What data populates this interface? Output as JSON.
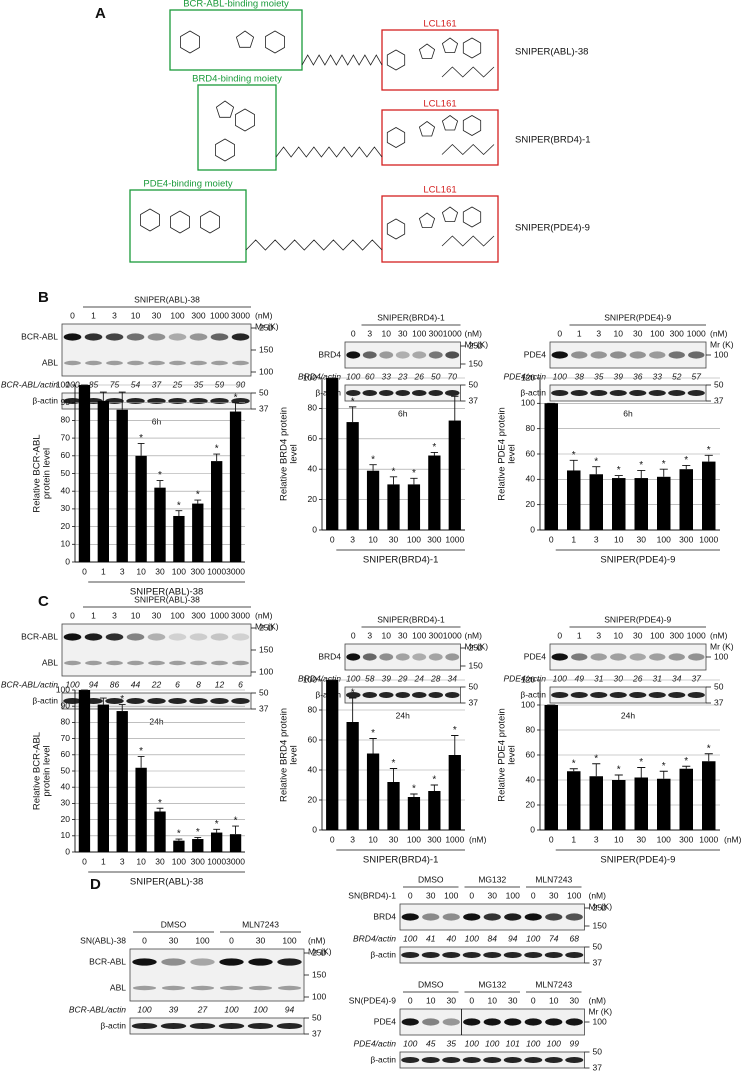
{
  "panels": [
    "A",
    "B",
    "C",
    "D"
  ],
  "structures": [
    {
      "moiety": "BCR-ABL-binding moiety",
      "ligand": "LCL161",
      "name": "SNIPER(ABL)-38"
    },
    {
      "moiety": "BRD4-binding moiety",
      "ligand": "LCL161",
      "name": "SNIPER(BRD4)-1"
    },
    {
      "moiety": "PDE4-binding moiety",
      "ligand": "LCL161",
      "name": "SNIPER(PDE4)-9"
    }
  ],
  "blots": [
    {
      "title": "SNIPER(ABL)-38",
      "conc": [
        0,
        1,
        3,
        10,
        30,
        100,
        300,
        1000,
        3000
      ],
      "unit": "(nM)",
      "mr": "Mr (K)",
      "rows": [
        "BCR-ABL",
        "ABL"
      ],
      "markers": [
        250,
        150,
        100
      ],
      "ratio_label": "BCR-ABL/actin",
      "ratios": [
        100,
        85,
        75,
        54,
        37,
        25,
        35,
        59,
        90
      ],
      "control": "β-actin",
      "control_markers": [
        50,
        37
      ],
      "time": "6h"
    },
    {
      "title": "SNIPER(BRD4)-1",
      "conc": [
        0,
        3,
        10,
        30,
        100,
        300,
        1000
      ],
      "unit": "(nM)",
      "mr": "Mr (K)",
      "rows": [
        "BRD4"
      ],
      "markers": [
        250,
        150
      ],
      "ratio_label": "BRD4/actin",
      "ratios": [
        100,
        60,
        33,
        23,
        26,
        50,
        70
      ],
      "control": "β-actin",
      "control_markers": [
        50,
        37
      ],
      "time": "6h"
    },
    {
      "title": "SNIPER(PDE4)-9",
      "conc": [
        0,
        1,
        3,
        10,
        30,
        100,
        300,
        1000
      ],
      "unit": "(nM)",
      "mr": "Mr (K)",
      "rows": [
        "PDE4"
      ],
      "markers": [
        100
      ],
      "ratio_label": "PDE4/actin",
      "ratios": [
        100,
        38,
        35,
        39,
        36,
        33,
        52,
        57
      ],
      "control": "β-actin",
      "control_markers": [
        50,
        37
      ],
      "time": "6h"
    },
    {
      "title": "SNIPER(ABL)-38",
      "conc": [
        0,
        1,
        3,
        10,
        30,
        100,
        300,
        1000,
        3000
      ],
      "unit": "(nM)",
      "mr": "Mr (K)",
      "rows": [
        "BCR-ABL",
        "ABL"
      ],
      "markers": [
        250,
        150,
        100
      ],
      "ratio_label": "BCR-ABL/actin",
      "ratios": [
        100,
        94,
        86,
        44,
        22,
        6,
        8,
        12,
        6
      ],
      "control": "β-actin",
      "control_markers": [
        50,
        37
      ],
      "time": "24h"
    },
    {
      "title": "SNIPER(BRD4)-1",
      "conc": [
        0,
        3,
        10,
        30,
        100,
        300,
        1000
      ],
      "unit": "(nM)",
      "mr": "Mr (K)",
      "rows": [
        "BRD4"
      ],
      "markers": [
        250,
        150
      ],
      "ratio_label": "BRD4/actin",
      "ratios": [
        100,
        58,
        39,
        29,
        24,
        28,
        34
      ],
      "control": "β-actin",
      "control_markers": [
        50,
        37
      ],
      "time": "24h"
    },
    {
      "title": "SNIPER(PDE4)-9",
      "conc": [
        0,
        1,
        3,
        10,
        30,
        100,
        300,
        1000
      ],
      "unit": "(nM)",
      "mr": "Mr (K)",
      "rows": [
        "PDE4"
      ],
      "markers": [
        100
      ],
      "ratio_label": "PDE4/actin",
      "ratios": [
        100,
        49,
        31,
        30,
        26,
        31,
        34,
        37
      ],
      "control": "β-actin",
      "control_markers": [
        50,
        37
      ],
      "time": "24h"
    },
    {
      "compound": "SN(ABL)-38",
      "groups": [
        "DMSO",
        "MLN7243"
      ],
      "conc": [
        0,
        30,
        100,
        0,
        30,
        100
      ],
      "unit": "(nM)",
      "mr": "Mr (K)",
      "rows": [
        "BCR-ABL",
        "ABL"
      ],
      "markers": [
        250,
        150,
        100
      ],
      "ratio_label": "BCR-ABL/actin",
      "ratios": [
        100,
        39,
        27,
        100,
        100,
        94
      ],
      "control": "β-actin",
      "control_markers": [
        50,
        37
      ]
    },
    {
      "compound": "SN(BRD4)-1",
      "groups": [
        "DMSO",
        "MG132",
        "MLN7243"
      ],
      "conc": [
        0,
        30,
        100,
        0,
        30,
        100,
        0,
        30,
        100
      ],
      "unit": "(nM)",
      "mr": "Mr (K)",
      "rows": [
        "BRD4"
      ],
      "markers": [
        250,
        150
      ],
      "ratio_label": "BRD4/actin",
      "ratios": [
        100,
        41,
        40,
        100,
        84,
        94,
        100,
        74,
        68
      ],
      "control": "β-actin",
      "control_markers": [
        50,
        37
      ]
    },
    {
      "compound": "SN(PDE4)-9",
      "groups": [
        "DMSO",
        "MG132",
        "MLN7243"
      ],
      "conc": [
        0,
        10,
        30,
        0,
        10,
        30,
        0,
        10,
        30
      ],
      "unit": "(nM)",
      "mr": "Mr (K)",
      "rows": [
        "PDE4"
      ],
      "markers": [
        100
      ],
      "ratio_label": "PDE4/actin",
      "ratios": [
        100,
        45,
        35,
        100,
        100,
        101,
        100,
        100,
        99
      ],
      "control": "β-actin",
      "control_markers": [
        50,
        37
      ]
    }
  ],
  "chart_data": [
    {
      "type": "bar",
      "ylabel": [
        "Relative BCR-ABL",
        "protein level"
      ],
      "xlabel": "SNIPER(ABL)-38",
      "categories": [
        0,
        1,
        3,
        10,
        30,
        100,
        300,
        1000,
        3000
      ],
      "values": [
        100,
        91,
        86,
        60,
        42,
        26,
        33,
        57,
        85
      ],
      "errors": [
        0,
        5,
        10,
        7,
        4,
        3,
        2,
        4,
        5
      ],
      "significant": [
        false,
        false,
        false,
        true,
        true,
        true,
        true,
        true,
        true
      ],
      "marker": "*",
      "color": "#000000",
      "ylim": [
        0,
        100
      ],
      "yticks": [
        0,
        10,
        20,
        30,
        40,
        50,
        60,
        70,
        80,
        90,
        100
      ],
      "grid": true
    },
    {
      "type": "bar",
      "ylabel": [
        "Relative BRD4 protein",
        "level"
      ],
      "xlabel": "SNIPER(BRD4)-1",
      "categories": [
        0,
        3,
        10,
        30,
        100,
        300,
        1000
      ],
      "values": [
        100,
        71,
        39,
        30,
        30,
        49,
        72
      ],
      "errors": [
        0,
        10,
        4,
        5,
        4,
        2,
        16
      ],
      "significant": [
        false,
        true,
        true,
        true,
        true,
        true,
        false
      ],
      "marker": "*",
      "color": "#000000",
      "ylim": [
        0,
        100
      ],
      "yticks": [
        0,
        20,
        40,
        60,
        80,
        100
      ],
      "grid": true
    },
    {
      "type": "bar",
      "ylabel": [
        "Relative PDE4 protein",
        "level"
      ],
      "xlabel": "SNIPER(PDE4)-9",
      "categories": [
        0,
        1,
        3,
        10,
        30,
        100,
        300,
        1000
      ],
      "values": [
        100,
        47,
        44,
        41,
        41,
        42,
        48,
        54
      ],
      "errors": [
        0,
        8,
        6,
        2,
        6,
        6,
        3,
        5
      ],
      "significant": [
        false,
        true,
        true,
        true,
        true,
        true,
        true,
        true
      ],
      "marker": "*",
      "color": "#000000",
      "ylim": [
        0,
        120
      ],
      "yticks": [
        0,
        20,
        40,
        60,
        80,
        100,
        120
      ],
      "grid": true
    },
    {
      "type": "bar",
      "ylabel": [
        "Relative BCR-ABL",
        "protein level"
      ],
      "xlabel": "SNIPER(ABL)-38",
      "categories": [
        0,
        1,
        3,
        10,
        30,
        100,
        300,
        1000,
        3000
      ],
      "values": [
        100,
        91,
        87,
        52,
        25,
        7,
        8,
        12,
        11
      ],
      "errors": [
        0,
        4,
        4,
        7,
        2,
        1,
        1,
        2,
        5
      ],
      "significant": [
        false,
        false,
        true,
        true,
        true,
        true,
        true,
        true,
        true
      ],
      "marker": "*",
      "color": "#000000",
      "ylim": [
        0,
        100
      ],
      "yticks": [
        0,
        10,
        20,
        30,
        40,
        50,
        60,
        70,
        80,
        90,
        100
      ],
      "grid": true
    },
    {
      "type": "bar",
      "ylabel": [
        "Relative BRD4 protein",
        "level"
      ],
      "xlabel": "SNIPER(BRD4)-1",
      "unit": "(nM)",
      "categories": [
        0,
        3,
        10,
        30,
        100,
        300,
        1000
      ],
      "values": [
        100,
        72,
        51,
        32,
        22,
        26,
        50
      ],
      "errors": [
        0,
        16,
        10,
        9,
        2,
        4,
        13
      ],
      "significant": [
        false,
        true,
        true,
        true,
        true,
        true,
        true
      ],
      "marker": "*",
      "color": "#000000",
      "ylim": [
        0,
        100
      ],
      "yticks": [
        0,
        20,
        40,
        60,
        80,
        100
      ],
      "grid": true
    },
    {
      "type": "bar",
      "ylabel": [
        "Relative PDE4 protein",
        "level"
      ],
      "xlabel": "SNIPER(PDE4)-9",
      "unit": "(nM)",
      "categories": [
        0,
        1,
        3,
        10,
        30,
        100,
        300,
        1000
      ],
      "values": [
        100,
        47,
        43,
        40,
        42,
        41,
        49,
        55
      ],
      "errors": [
        0,
        2,
        10,
        4,
        8,
        6,
        2,
        6
      ],
      "significant": [
        false,
        true,
        true,
        true,
        true,
        true,
        true,
        true
      ],
      "marker": "*",
      "color": "#000000",
      "ylim": [
        0,
        120
      ],
      "yticks": [
        0,
        20,
        40,
        60,
        80,
        100,
        120
      ],
      "grid": true
    }
  ]
}
